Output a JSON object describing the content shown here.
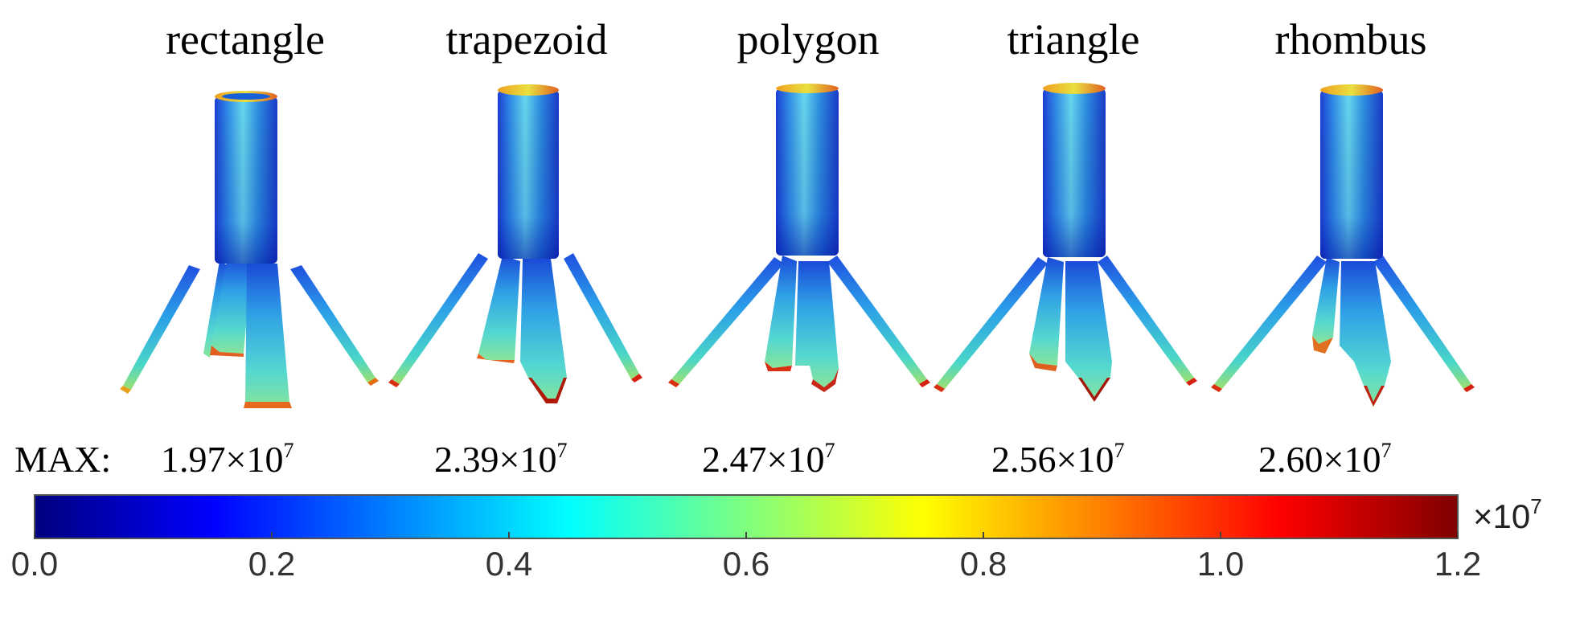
{
  "shapes": [
    {
      "label": "rectangle",
      "max_mantissa": "1.97",
      "max_times": "×10",
      "max_exp": "7"
    },
    {
      "label": "trapezoid",
      "max_mantissa": "2.39",
      "max_times": "×10",
      "max_exp": "7"
    },
    {
      "label": "polygon",
      "max_mantissa": "2.47",
      "max_times": "×10",
      "max_exp": "7"
    },
    {
      "label": "triangle",
      "max_mantissa": "2.56",
      "max_times": "×10",
      "max_exp": "7"
    },
    {
      "label": "rhombus",
      "max_mantissa": "2.60",
      "max_times": "×10",
      "max_exp": "7"
    }
  ],
  "max_prefix": "MAX:",
  "colorbar": {
    "ticks": [
      "0.0",
      "0.2",
      "0.4",
      "0.6",
      "0.8",
      "1.0",
      "1.2"
    ],
    "unit_prefix": "×10",
    "unit_exp": "7",
    "colors": [
      "#00007f",
      "#0000ff",
      "#007fff",
      "#00ffff",
      "#7fff7f",
      "#ffff00",
      "#ff7f00",
      "#ff0000",
      "#7f0000"
    ]
  }
}
